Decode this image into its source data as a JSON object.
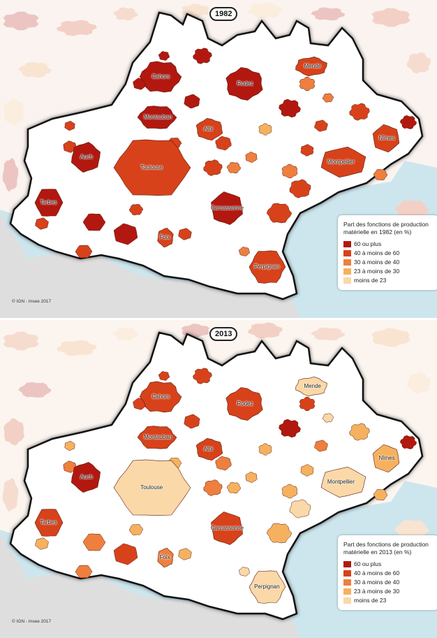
{
  "colors": {
    "sea": "#cde6ee",
    "land_outside": "#dedede",
    "c60": "#b2180f",
    "c40": "#d7421a",
    "c30": "#ee7f3e",
    "c23": "#f6b15f",
    "c0": "#fad8a7",
    "c60_faded": "#ecc5c3",
    "c40_faded": "#f3d0c6",
    "c30_faded": "#f6dccf",
    "c23_faded": "#f9e4d2",
    "c0_faded": "#fbeede"
  },
  "legend_classes": [
    {
      "label": "60 ou plus",
      "key": "c60"
    },
    {
      "label": "40 à moins de 60",
      "key": "c40"
    },
    {
      "label": "30 à moins de 40",
      "key": "c30"
    },
    {
      "label": "23 à moins de 30",
      "key": "c23"
    },
    {
      "label": "moins de 23",
      "key": "c0"
    }
  ],
  "panels": [
    {
      "year": "1982",
      "legend_title": "Part des fonctions de production matérielle en 1982 (en %)",
      "credit": "© IGN - Insee 2017",
      "cities": [
        {
          "name": "Cahors",
          "cls": "c60"
        },
        {
          "name": "Rodez",
          "cls": "c60"
        },
        {
          "name": "Mende",
          "cls": "c40"
        },
        {
          "name": "Montauban",
          "cls": "c60"
        },
        {
          "name": "Albi",
          "cls": "c40"
        },
        {
          "name": "Auch",
          "cls": "c60"
        },
        {
          "name": "Toulouse",
          "cls": "c40"
        },
        {
          "name": "Nîmes",
          "cls": "c40"
        },
        {
          "name": "Montpellier",
          "cls": "c40"
        },
        {
          "name": "Tarbes",
          "cls": "c60"
        },
        {
          "name": "Carcassonne",
          "cls": "c60"
        },
        {
          "name": "Foix",
          "cls": "c40"
        },
        {
          "name": "Perpignan",
          "cls": "c40"
        }
      ]
    },
    {
      "year": "2013",
      "legend_title": "Part des fonctions de production matérielle en 2013 (en %)",
      "credit": "© IGN - Insee 2017",
      "cities": [
        {
          "name": "Cahors",
          "cls": "c40"
        },
        {
          "name": "Rodez",
          "cls": "c40"
        },
        {
          "name": "Mende",
          "cls": "c0"
        },
        {
          "name": "Montauban",
          "cls": "c40"
        },
        {
          "name": "Albi",
          "cls": "c40"
        },
        {
          "name": "Auch",
          "cls": "c60"
        },
        {
          "name": "Toulouse",
          "cls": "c0"
        },
        {
          "name": "Nîmes",
          "cls": "c23"
        },
        {
          "name": "Montpellier",
          "cls": "c0"
        },
        {
          "name": "Tarbes",
          "cls": "c40"
        },
        {
          "name": "Carcassonne",
          "cls": "c40"
        },
        {
          "name": "Foix",
          "cls": "c30"
        },
        {
          "name": "Perpignan",
          "cls": "c0"
        }
      ]
    }
  ]
}
